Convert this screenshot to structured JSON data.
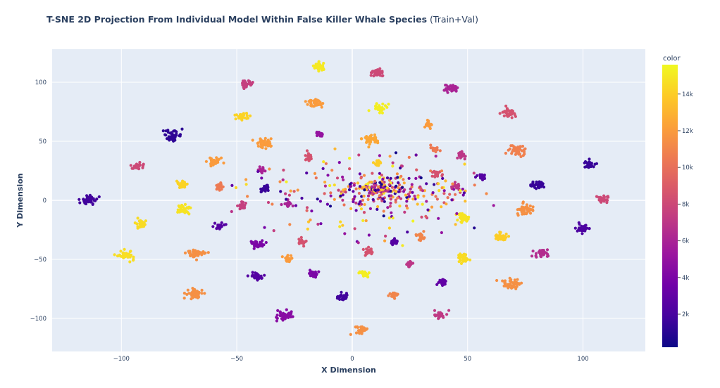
{
  "chart_data": {
    "type": "scatter",
    "title": "T-SNE 2D Projection From Individual Model Within False Killer Whale Species",
    "subtitle": "(Train+Val)",
    "xlabel": "X Dimension",
    "ylabel": "Y Dimension",
    "xlim": [
      -130,
      127
    ],
    "ylim": [
      -128,
      128
    ],
    "xticks": [
      -100,
      -50,
      0,
      50,
      100
    ],
    "yticks": [
      -100,
      -50,
      0,
      50,
      100
    ],
    "tick_labels_x": [
      "−100",
      "−50",
      "0",
      "50",
      "100"
    ],
    "tick_labels_y": [
      "−100",
      "−50",
      "0",
      "50",
      "100"
    ],
    "grid": true,
    "plot_background": "#e5ecf6",
    "colorbar": {
      "title": "color",
      "range": [
        200,
        15600
      ],
      "ticks": [
        2000,
        4000,
        6000,
        8000,
        10000,
        12000,
        14000
      ],
      "tick_labels": [
        "2k",
        "4k",
        "6k",
        "8k",
        "10k",
        "12k",
        "14k"
      ],
      "colorscale": [
        "#0d0887",
        "#46039f",
        "#7201a8",
        "#9c179e",
        "#bd3786",
        "#d8576b",
        "#ed7953",
        "#fb9f3a",
        "#fdca26",
        "#f0f921"
      ]
    },
    "clusters": [
      {
        "x": -14,
        "y": 113,
        "color_value": 15000,
        "size": "m"
      },
      {
        "x": 11,
        "y": 108,
        "color_value": 8000,
        "size": "m"
      },
      {
        "x": -46,
        "y": 99,
        "color_value": 7500,
        "size": "m"
      },
      {
        "x": 43,
        "y": 95,
        "color_value": 6000,
        "size": "m"
      },
      {
        "x": -16,
        "y": 82,
        "color_value": 12000,
        "size": "l"
      },
      {
        "x": 12,
        "y": 78,
        "color_value": 15200,
        "size": "m"
      },
      {
        "x": -48,
        "y": 71,
        "color_value": 14200,
        "size": "m"
      },
      {
        "x": 68,
        "y": 74,
        "color_value": 8500,
        "size": "m"
      },
      {
        "x": 33,
        "y": 64,
        "color_value": 12000,
        "size": "s"
      },
      {
        "x": -78,
        "y": 55,
        "color_value": 1200,
        "size": "l"
      },
      {
        "x": -14,
        "y": 56,
        "color_value": 5000,
        "size": "s"
      },
      {
        "x": 8,
        "y": 52,
        "color_value": 12500,
        "size": "l"
      },
      {
        "x": -38,
        "y": 49,
        "color_value": 12000,
        "size": "l"
      },
      {
        "x": 36,
        "y": 43,
        "color_value": 10500,
        "size": "s"
      },
      {
        "x": 72,
        "y": 42,
        "color_value": 10800,
        "size": "l"
      },
      {
        "x": -19,
        "y": 36,
        "color_value": 8500,
        "size": "s"
      },
      {
        "x": -60,
        "y": 33,
        "color_value": 12000,
        "size": "m"
      },
      {
        "x": 47,
        "y": 38,
        "color_value": 7000,
        "size": "s"
      },
      {
        "x": 11,
        "y": 32,
        "color_value": 14000,
        "size": "s"
      },
      {
        "x": -93,
        "y": 29,
        "color_value": 8000,
        "size": "m"
      },
      {
        "x": 103,
        "y": 30,
        "color_value": 1500,
        "size": "m"
      },
      {
        "x": -39,
        "y": 26,
        "color_value": 6000,
        "size": "s"
      },
      {
        "x": 56,
        "y": 20,
        "color_value": 2500,
        "size": "s"
      },
      {
        "x": 37,
        "y": 22,
        "color_value": 8500,
        "size": "s"
      },
      {
        "x": -74,
        "y": 13,
        "color_value": 14200,
        "size": "m"
      },
      {
        "x": -58,
        "y": 12,
        "color_value": 10500,
        "size": "s"
      },
      {
        "x": -38,
        "y": 10,
        "color_value": 1500,
        "size": "s"
      },
      {
        "x": 80,
        "y": 13,
        "color_value": 1500,
        "size": "m"
      },
      {
        "x": 45,
        "y": 12,
        "color_value": 7000,
        "size": "s"
      },
      {
        "x": -114,
        "y": 1,
        "color_value": 1800,
        "size": "l"
      },
      {
        "x": 109,
        "y": 1,
        "color_value": 8000,
        "size": "m"
      },
      {
        "x": -73,
        "y": -8,
        "color_value": 14800,
        "size": "m"
      },
      {
        "x": -48,
        "y": -4,
        "color_value": 7500,
        "size": "s"
      },
      {
        "x": -28,
        "y": -3,
        "color_value": 6000,
        "size": "s"
      },
      {
        "x": 75,
        "y": -8,
        "color_value": 11500,
        "size": "l"
      },
      {
        "x": -91,
        "y": -20,
        "color_value": 14500,
        "size": "m"
      },
      {
        "x": -57,
        "y": -22,
        "color_value": 2500,
        "size": "s"
      },
      {
        "x": 48,
        "y": -15,
        "color_value": 14800,
        "size": "m"
      },
      {
        "x": 100,
        "y": -24,
        "color_value": 2200,
        "size": "m"
      },
      {
        "x": 64,
        "y": -31,
        "color_value": 14000,
        "size": "m"
      },
      {
        "x": -41,
        "y": -37,
        "color_value": 4000,
        "size": "m"
      },
      {
        "x": -22,
        "y": -35,
        "color_value": 8500,
        "size": "s"
      },
      {
        "x": 18,
        "y": -36,
        "color_value": 2500,
        "size": "s"
      },
      {
        "x": 30,
        "y": -30,
        "color_value": 11000,
        "size": "s"
      },
      {
        "x": -98,
        "y": -46,
        "color_value": 14600,
        "size": "l"
      },
      {
        "x": -68,
        "y": -45,
        "color_value": 11500,
        "size": "l"
      },
      {
        "x": 7,
        "y": -43,
        "color_value": 8500,
        "size": "s"
      },
      {
        "x": 48,
        "y": -49,
        "color_value": 14500,
        "size": "m"
      },
      {
        "x": 82,
        "y": -45,
        "color_value": 6500,
        "size": "m"
      },
      {
        "x": 25,
        "y": -54,
        "color_value": 7000,
        "size": "s"
      },
      {
        "x": -28,
        "y": -50,
        "color_value": 12000,
        "size": "s"
      },
      {
        "x": -42,
        "y": -64,
        "color_value": 2500,
        "size": "m"
      },
      {
        "x": -17,
        "y": -62,
        "color_value": 4000,
        "size": "s"
      },
      {
        "x": 5,
        "y": -62,
        "color_value": 15200,
        "size": "s"
      },
      {
        "x": 39,
        "y": -69,
        "color_value": 3000,
        "size": "s"
      },
      {
        "x": -68,
        "y": -79,
        "color_value": 11500,
        "size": "l"
      },
      {
        "x": 69,
        "y": -71,
        "color_value": 11500,
        "size": "l"
      },
      {
        "x": 18,
        "y": -80,
        "color_value": 11000,
        "size": "s"
      },
      {
        "x": -4,
        "y": -82,
        "color_value": 1800,
        "size": "m"
      },
      {
        "x": -29,
        "y": -98,
        "color_value": 4500,
        "size": "l"
      },
      {
        "x": 38,
        "y": -97,
        "color_value": 7200,
        "size": "m"
      },
      {
        "x": 4,
        "y": -110,
        "color_value": 11500,
        "size": "m"
      }
    ]
  }
}
